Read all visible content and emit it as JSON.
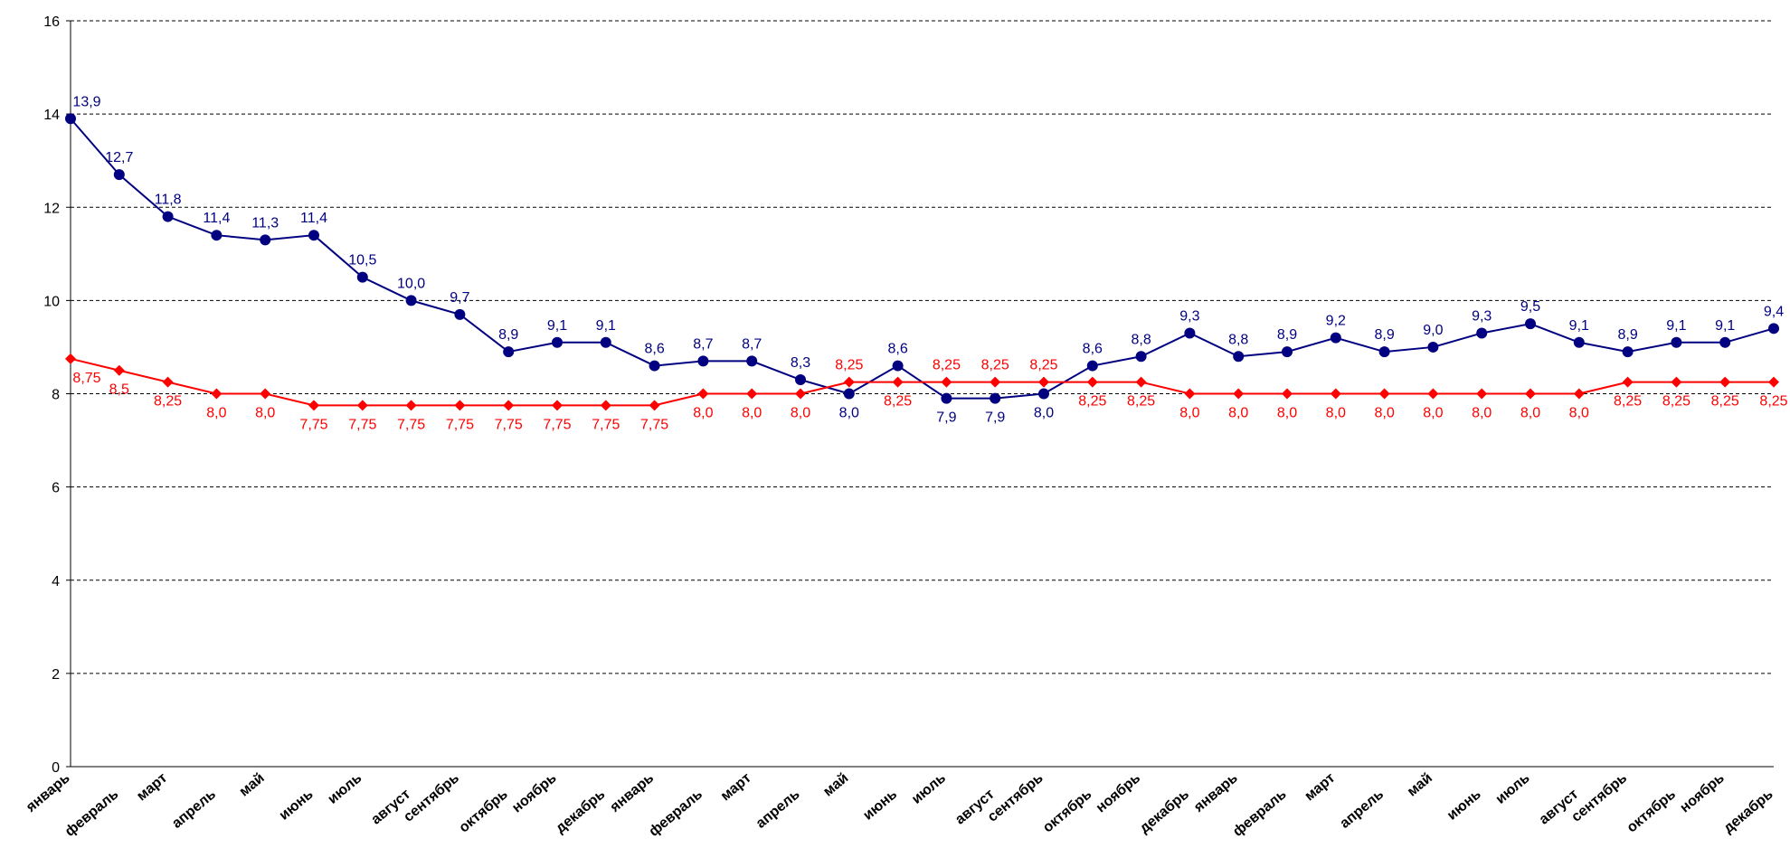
{
  "chart_data": {
    "type": "line",
    "categories": [
      "январь",
      "февраль",
      "март",
      "апрель",
      "май",
      "июнь",
      "июль",
      "август",
      "сентябрь",
      "октябрь",
      "ноябрь",
      "декабрь",
      "январь",
      "февраль",
      "март",
      "апрель",
      "май",
      "июнь",
      "июль",
      "август",
      "сентябрь",
      "октябрь",
      "ноябрь",
      "декабрь",
      "январь",
      "февраль",
      "март",
      "апрель",
      "май",
      "июнь",
      "июль",
      "август",
      "сентябрь",
      "октябрь",
      "ноябрь",
      "декабрь"
    ],
    "series": [
      {
        "color": "#000080",
        "marker": "circle",
        "values": [
          13.9,
          12.7,
          11.8,
          11.4,
          11.3,
          11.4,
          10.5,
          10.0,
          9.7,
          8.9,
          9.1,
          9.1,
          8.6,
          8.7,
          8.7,
          8.3,
          8.0,
          8.6,
          7.9,
          7.9,
          8.0,
          8.6,
          8.8,
          9.3,
          8.8,
          8.9,
          9.2,
          8.9,
          9.0,
          9.3,
          9.5,
          9.1,
          8.9,
          9.1,
          9.1,
          9.4
        ],
        "value_labels": [
          "13,9",
          "12,7",
          "11,8",
          "11,4",
          "11,3",
          "11,4",
          "10,5",
          "10,0",
          "9,7",
          "8,9",
          "9,1",
          "9,1",
          "8,6",
          "8,7",
          "8,7",
          "8,3",
          "8,0",
          "8,6",
          "7,9",
          "7,9",
          "8,0",
          "8,6",
          "8,8",
          "9,3",
          "8,8",
          "8,9",
          "9,2",
          "8,9",
          "9,0",
          "9,3",
          "9,5",
          "9,1",
          "8,9",
          "9,1",
          "9,1",
          "9,4"
        ]
      },
      {
        "color": "#ff0000",
        "marker": "diamond",
        "values": [
          8.75,
          8.5,
          8.25,
          8.0,
          8.0,
          7.75,
          7.75,
          7.75,
          7.75,
          7.75,
          7.75,
          7.75,
          7.75,
          8.0,
          8.0,
          8.0,
          8.25,
          8.25,
          8.25,
          8.25,
          8.25,
          8.25,
          8.25,
          8.0,
          8.0,
          8.0,
          8.0,
          8.0,
          8.0,
          8.0,
          8.0,
          8.0,
          8.25,
          8.25,
          8.25,
          8.25
        ],
        "value_labels": [
          "8,75",
          "8,5",
          "8,25",
          "8,0",
          "8,0",
          "7,75",
          "7,75",
          "7,75",
          "7,75",
          "7,75",
          "7,75",
          "7,75",
          "7,75",
          "8,0",
          "8,0",
          "8,0",
          "8,25",
          "8,25",
          "8,25",
          "8,25",
          "8,25",
          "8,25",
          "8,25",
          "8,0",
          "8,0",
          "8,0",
          "8,0",
          "8,0",
          "8,0",
          "8,0",
          "8,0",
          "8,0",
          "8,25",
          "8,25",
          "8,25",
          "8,25"
        ]
      }
    ],
    "ylim": [
      0,
      16
    ],
    "yticks": [
      0,
      2,
      4,
      6,
      8,
      10,
      12,
      14,
      16
    ],
    "grid": true
  }
}
